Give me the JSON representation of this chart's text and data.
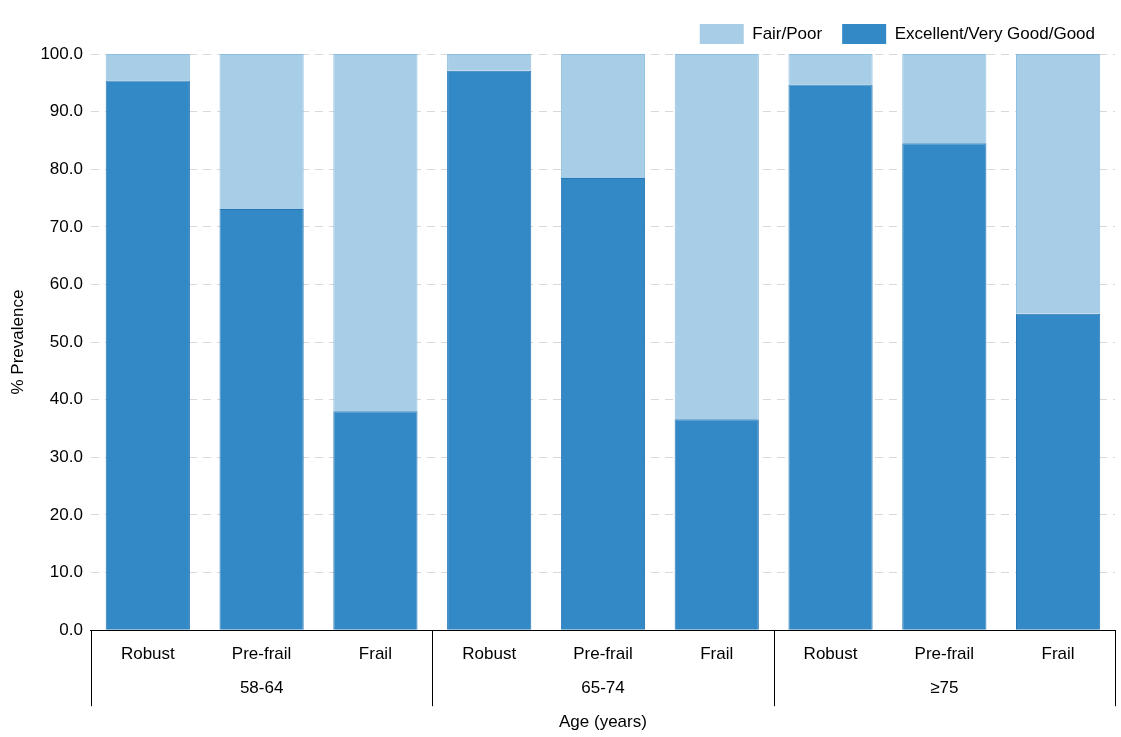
{
  "chart_data": {
    "type": "bar",
    "stacked": true,
    "xlabel": "Age (years)",
    "ylabel": "% Prevalence",
    "categories": [
      "Robust",
      "Pre-frail",
      "Frail",
      "Robust",
      "Pre-frail",
      "Frail",
      "Robust",
      "Pre-frail",
      "Frail"
    ],
    "annotations": [
      "58-64",
      "65-74",
      "≥75"
    ],
    "series": [
      {
        "name": "Excellent/Very Good/Good",
        "color": "#3389c6",
        "values": [
          95.4,
          73.1,
          38.0,
          97.1,
          78.5,
          36.6,
          94.7,
          84.5,
          54.9
        ]
      },
      {
        "name": "Fair/Poor",
        "color": "#a8cde6",
        "values": [
          4.6,
          26.9,
          62.0,
          2.9,
          21.5,
          63.4,
          5.3,
          15.5,
          45.1
        ]
      }
    ],
    "ylim": [
      0,
      100
    ],
    "yticks": [
      {
        "value": 0,
        "label": "0.0"
      },
      {
        "value": 10,
        "label": "10.0"
      },
      {
        "value": 20,
        "label": "20.0"
      },
      {
        "value": 30,
        "label": "30.0"
      },
      {
        "value": 40,
        "label": "40.0"
      },
      {
        "value": 50,
        "label": "50.0"
      },
      {
        "value": 60,
        "label": "60.0"
      },
      {
        "value": 70,
        "label": "70.0"
      },
      {
        "value": 80,
        "label": "80.0"
      },
      {
        "value": 90,
        "label": "90.0"
      },
      {
        "value": 100,
        "label": "100.0"
      }
    ],
    "grid": "y",
    "legend": "top right"
  }
}
